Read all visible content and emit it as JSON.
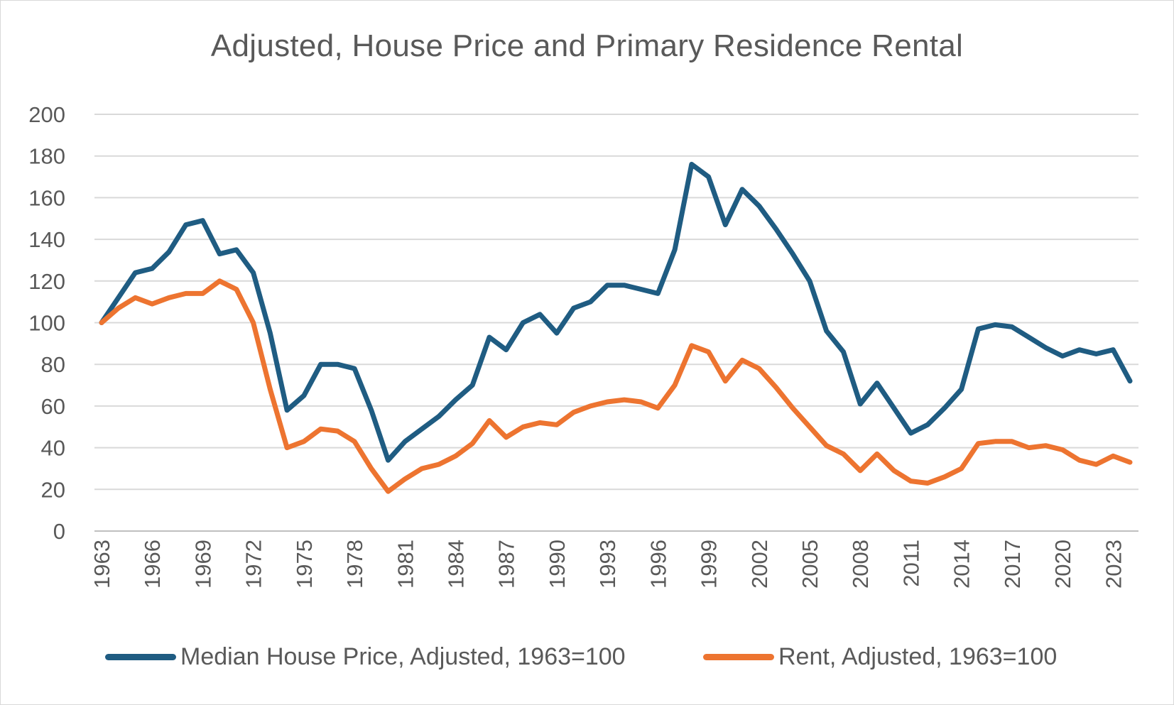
{
  "chart_data": {
    "type": "line",
    "title": "Adjusted, House Price and Primary Residence Rental",
    "xlabel": "",
    "ylabel": "",
    "ylim": [
      0,
      200
    ],
    "yticks": [
      0,
      20,
      40,
      60,
      80,
      100,
      120,
      140,
      160,
      180,
      200
    ],
    "grid": true,
    "legend_position": "bottom",
    "x": [
      1963,
      1964,
      1965,
      1966,
      1967,
      1968,
      1969,
      1970,
      1971,
      1972,
      1973,
      1974,
      1975,
      1976,
      1977,
      1978,
      1979,
      1980,
      1981,
      1982,
      1983,
      1984,
      1985,
      1986,
      1987,
      1988,
      1989,
      1990,
      1991,
      1992,
      1993,
      1994,
      1995,
      1996,
      1997,
      1998,
      1999,
      2000,
      2001,
      2002,
      2003,
      2004,
      2005,
      2006,
      2007,
      2008,
      2009,
      2010,
      2011,
      2012,
      2013,
      2014,
      2015,
      2016,
      2017,
      2018,
      2019,
      2020,
      2021,
      2022,
      2023,
      2024
    ],
    "x_tick_labels": [
      "1963",
      "1966",
      "1969",
      "1972",
      "1975",
      "1978",
      "1981",
      "1984",
      "1987",
      "1990",
      "1993",
      "1996",
      "1999",
      "2002",
      "2005",
      "2008",
      "2011",
      "2014",
      "2017",
      "2020",
      "2023"
    ],
    "series": [
      {
        "name": "Median House Price, Adjusted, 1963=100",
        "color": "#1f5c82",
        "values": [
          100,
          112,
          124,
          126,
          134,
          147,
          149,
          133,
          135,
          124,
          95,
          58,
          65,
          80,
          80,
          78,
          58,
          34,
          43,
          49,
          55,
          63,
          70,
          93,
          87,
          100,
          104,
          95,
          107,
          110,
          118,
          118,
          116,
          114,
          135,
          176,
          170,
          147,
          164,
          156,
          145,
          133,
          120,
          96,
          86,
          61,
          71,
          59,
          47,
          51,
          59,
          68,
          97,
          99,
          98,
          93,
          88,
          84,
          87,
          85,
          87,
          72
        ]
      },
      {
        "name": "Rent, Adjusted, 1963=100",
        "color": "#ed7430",
        "values": [
          100,
          107,
          112,
          109,
          112,
          114,
          114,
          120,
          116,
          100,
          68,
          40,
          43,
          49,
          48,
          43,
          30,
          19,
          25,
          30,
          32,
          36,
          42,
          53,
          45,
          50,
          52,
          51,
          57,
          60,
          62,
          63,
          62,
          59,
          70,
          89,
          86,
          72,
          82,
          78,
          69,
          59,
          50,
          41,
          37,
          29,
          37,
          29,
          24,
          23,
          26,
          30,
          42,
          43,
          43,
          40,
          41,
          39,
          34,
          32,
          36,
          33
        ]
      }
    ]
  }
}
